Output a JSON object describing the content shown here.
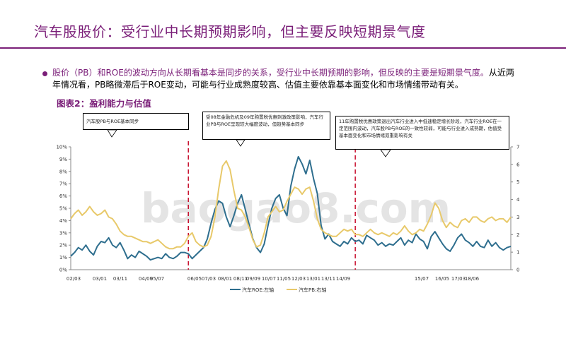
{
  "header": {
    "title": "汽车股股价：受行业中长期预期影响，但主要反映短期景气度"
  },
  "bullet": {
    "part1": "股价（PB）和ROE的波动方向从长期看基本是同步的关系，受行业中长期预期的影响，但反映的主要是短期景气度。",
    "part2": "从近两年情况看，PB略微滞后于ROE变动，可能与行业成熟度较高、估值主要依靠基本面变化和市场情绪带动有关。"
  },
  "figure": {
    "label": "图表2：盈利能力与估值"
  },
  "callouts": [
    {
      "text": "汽车股PB与ROE基本同步"
    },
    {
      "text": "受08年金融危机及09年购置税优惠刺激政策影响，汽车行业PB与ROE呈现较大幅度波动，但趋势基本同步"
    },
    {
      "text": "11年购置税优惠政策退出汽车行业进入中低速稳定增长阶段，汽车行业ROE在一定范围内波动，汽车股PB与ROE的一致性较弱，可能与行业进入成熟期，估值受基本面变化和市场情绪双重影响有关"
    }
  ],
  "colors": {
    "accent": "#7a1e78",
    "roe": "#2e6e8e",
    "pb": "#e8c96a",
    "divider": "#c8102e"
  },
  "chart_data": {
    "type": "line",
    "title": "",
    "xlabel": "",
    "x_tick_labels": [
      "02/03",
      "03/01",
      "03/11",
      "04/09",
      "05/07",
      "06/05",
      "07/03",
      "08/01",
      "08/11",
      "09/09",
      "10/07",
      "11/05",
      "12/03",
      "13/01",
      "13/11",
      "14/09",
      "15/07",
      "16/05",
      "17/03",
      "18/06"
    ],
    "y_left": {
      "ylim": [
        0,
        10
      ],
      "ticks": [
        "0%",
        "1%",
        "2%",
        "3%",
        "4%",
        "5%",
        "6%",
        "7%",
        "8%",
        "9%",
        "10%"
      ]
    },
    "y_right": {
      "ylim": [
        0,
        7
      ],
      "ticks": [
        "0",
        "1",
        "2",
        "3",
        "4",
        "5",
        "6",
        "7"
      ]
    },
    "dividers_at_index": [
      31,
      75
    ],
    "series": [
      {
        "name": "汽车ROE:左轴",
        "axis": "left",
        "values": [
          1.1,
          1.4,
          1.8,
          1.6,
          2.0,
          1.5,
          1.2,
          1.9,
          2.3,
          2.2,
          2.6,
          2.0,
          1.8,
          2.2,
          1.6,
          0.9,
          1.2,
          1.0,
          1.5,
          1.3,
          1.1,
          0.8,
          0.9,
          1.0,
          0.9,
          1.3,
          1.0,
          0.9,
          1.1,
          1.4,
          1.4,
          1.3,
          0.9,
          1.2,
          1.5,
          1.8,
          2.5,
          3.8,
          4.9,
          5.6,
          5.4,
          4.3,
          3.5,
          4.4,
          5.4,
          6.1,
          4.9,
          3.7,
          2.5,
          1.8,
          1.4,
          2.1,
          3.6,
          5.0,
          5.8,
          6.1,
          5.0,
          4.4,
          6.8,
          8.2,
          9.2,
          8.6,
          7.8,
          8.9,
          7.4,
          6.2,
          3.6,
          2.5,
          2.9,
          2.3,
          2.1,
          1.9,
          2.3,
          2.1,
          2.6,
          2.3,
          2.4,
          2.1,
          2.8,
          2.6,
          2.4,
          2.0,
          2.2,
          1.9,
          2.1,
          2.0,
          2.3,
          2.6,
          2.0,
          2.4,
          2.2,
          2.9,
          2.5,
          2.3,
          1.7,
          2.7,
          3.1,
          2.6,
          2.1,
          1.7,
          1.5,
          2.0,
          2.6,
          2.9,
          2.4,
          2.2,
          1.9,
          2.3,
          1.9,
          1.8,
          2.4,
          1.9,
          2.2,
          1.8,
          1.6,
          1.8,
          1.9
        ]
      },
      {
        "name": "汽车PB:右轴",
        "axis": "right",
        "values": [
          2.9,
          3.2,
          3.4,
          3.1,
          3.3,
          3.6,
          3.3,
          3.1,
          3.2,
          3.4,
          3.0,
          2.9,
          2.6,
          2.2,
          2.0,
          1.9,
          1.9,
          1.8,
          1.7,
          1.6,
          1.6,
          1.5,
          1.6,
          1.7,
          1.5,
          1.3,
          1.2,
          1.2,
          1.3,
          1.3,
          1.5,
          1.9,
          2.1,
          1.6,
          1.4,
          1.3,
          1.4,
          1.9,
          3.0,
          4.6,
          5.9,
          6.2,
          5.7,
          4.5,
          3.5,
          3.4,
          3.0,
          2.4,
          1.7,
          1.3,
          1.4,
          2.1,
          3.0,
          3.3,
          3.6,
          3.3,
          3.4,
          3.9,
          4.3,
          4.7,
          4.6,
          4.3,
          4.6,
          4.7,
          3.9,
          2.9,
          2.3,
          2.1,
          2.0,
          1.9,
          1.9,
          2.1,
          2.3,
          2.2,
          2.3,
          2.0,
          2.0,
          1.9,
          2.1,
          2.3,
          2.1,
          2.0,
          2.1,
          2.0,
          1.9,
          2.1,
          2.0,
          2.2,
          2.5,
          2.2,
          2.0,
          2.1,
          2.3,
          2.2,
          2.6,
          3.1,
          3.8,
          3.5,
          2.8,
          2.4,
          2.7,
          2.5,
          2.4,
          2.8,
          2.9,
          2.7,
          3.0,
          3.0,
          2.8,
          2.7,
          2.9,
          3.0,
          2.8,
          2.9,
          2.9,
          2.7,
          3.0
        ]
      }
    ],
    "legend_position": "bottom"
  }
}
